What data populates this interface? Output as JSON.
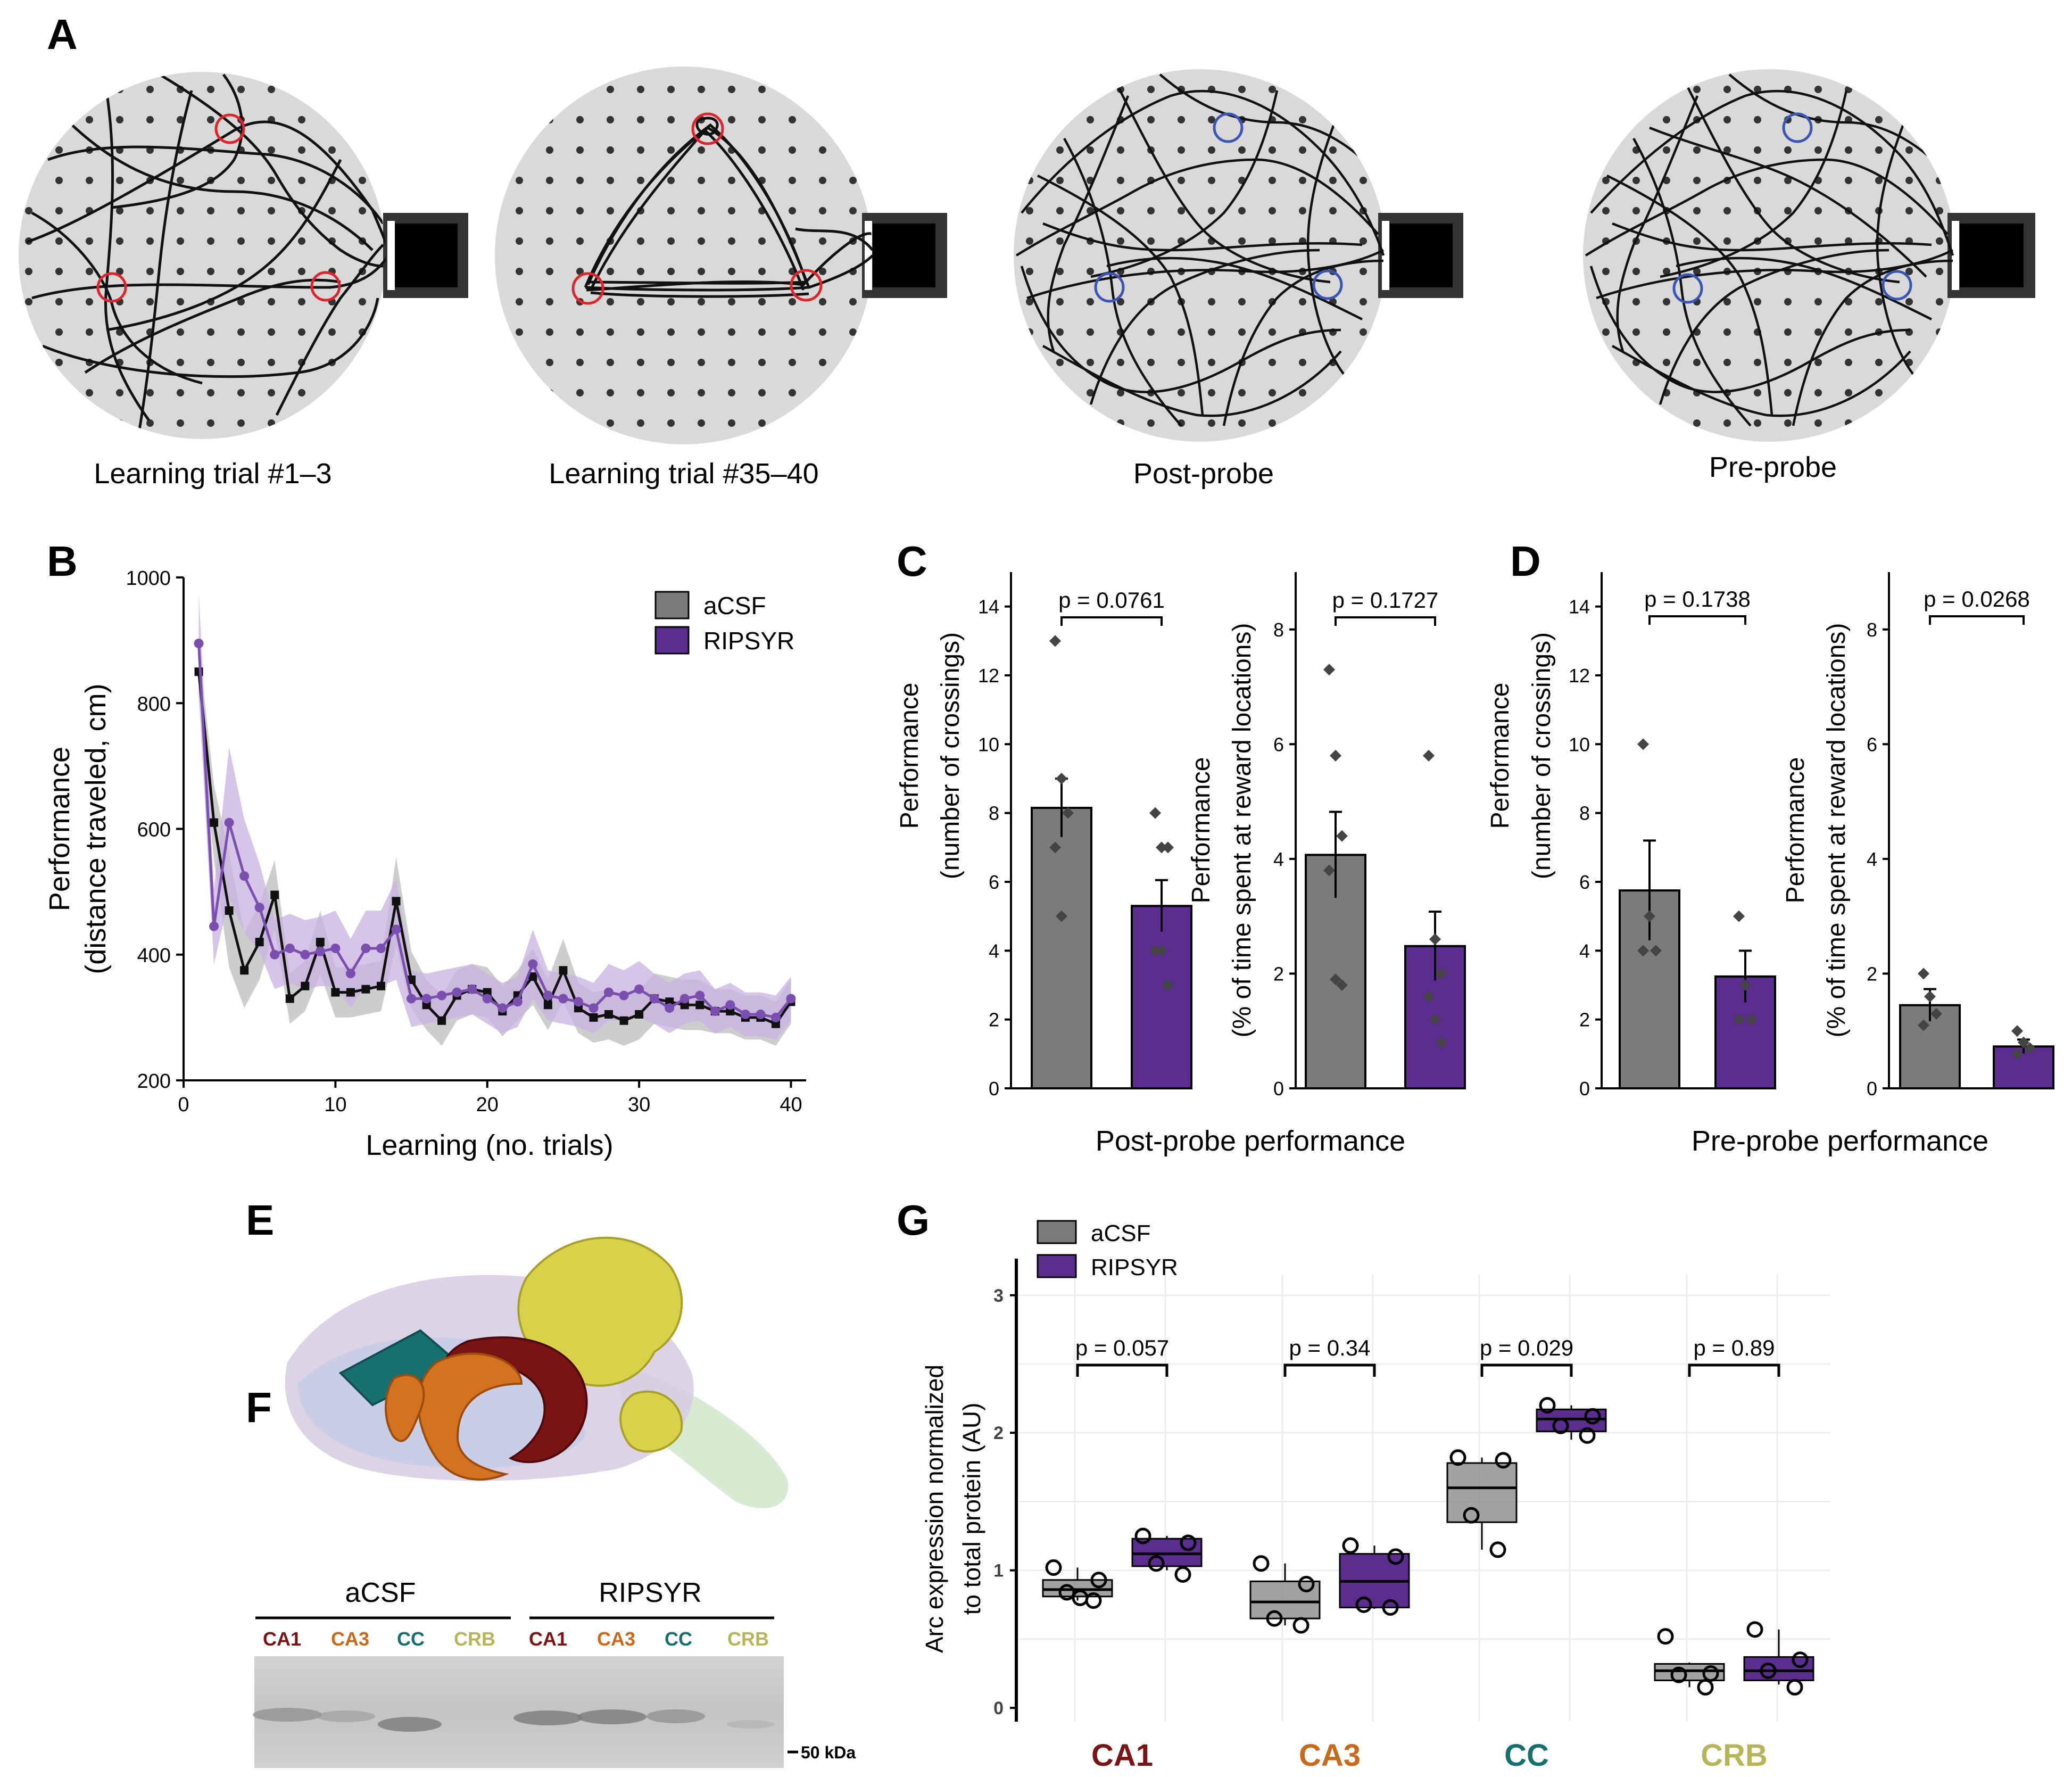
{
  "colors": {
    "aCSF": "#7b7b7b",
    "RIPSYR": "#5b2d8e",
    "aCSF_band": "#c8c8c8",
    "RIPSYR_band": "#c8b2e0",
    "reward_red": "#e0242b",
    "reward_blue": "#3a55b4",
    "arena": "#d9d9d9",
    "CA1": "#7a1414",
    "CA3": "#c8691c",
    "CC": "#17706e",
    "CRB": "#b7b45a"
  },
  "panel_a": {
    "letter": "A",
    "arenas": [
      {
        "label": "Learning trial #1–3",
        "marker": "red"
      },
      {
        "label": "Learning trial #35–40",
        "marker": "red"
      },
      {
        "label": "Post-probe",
        "marker": "blue"
      },
      {
        "label": "Pre-probe",
        "marker": "blue"
      }
    ]
  },
  "panel_b": {
    "letter": "B",
    "legend": [
      "aCSF",
      "RIPSYR"
    ]
  },
  "panel_c": {
    "letter": "C",
    "title": "Post-probe performance"
  },
  "panel_d": {
    "letter": "D",
    "title": "Pre-probe performance"
  },
  "panel_e": {
    "letter": "E"
  },
  "panel_f": {
    "letter": "F",
    "groups": [
      "aCSF",
      "RIPSYR"
    ],
    "lanes": [
      "CA1",
      "CA3",
      "CC",
      "CRB",
      "CA1",
      "CA3",
      "CC",
      "CRB"
    ],
    "marker": "50 kDa"
  },
  "panel_g": {
    "letter": "G",
    "legend": [
      "aCSF",
      "RIPSYR"
    ]
  },
  "chart_data": [
    {
      "id": "B",
      "type": "line",
      "xlabel": "Learning (no. trials)",
      "ylabel": [
        "Performance",
        "(distance traveled, cm)"
      ],
      "xlim": [
        0,
        41
      ],
      "ylim": [
        200,
        1000
      ],
      "xticks": [
        0,
        10,
        20,
        30,
        40
      ],
      "yticks": [
        200,
        400,
        600,
        800,
        1000
      ],
      "x": [
        1,
        2,
        3,
        4,
        5,
        6,
        7,
        8,
        9,
        10,
        11,
        12,
        13,
        14,
        15,
        16,
        17,
        18,
        19,
        20,
        21,
        22,
        23,
        24,
        25,
        26,
        27,
        28,
        29,
        30,
        31,
        32,
        33,
        34,
        35,
        36,
        37,
        38,
        39,
        40
      ],
      "series": [
        {
          "name": "aCSF",
          "values": [
            850,
            610,
            470,
            375,
            420,
            495,
            330,
            350,
            420,
            340,
            340,
            345,
            350,
            485,
            360,
            320,
            295,
            335,
            345,
            340,
            310,
            335,
            365,
            320,
            375,
            315,
            300,
            305,
            295,
            305,
            330,
            325,
            320,
            320,
            310,
            310,
            300,
            300,
            290,
            325
          ],
          "band": [
            40,
            60,
            90,
            60,
            60,
            55,
            40,
            40,
            50,
            40,
            40,
            40,
            40,
            70,
            45,
            40,
            40,
            40,
            40,
            40,
            40,
            40,
            45,
            40,
            50,
            40,
            40,
            40,
            40,
            40,
            40,
            40,
            40,
            40,
            35,
            35,
            35,
            35,
            35,
            35
          ]
        },
        {
          "name": "RIPSYR",
          "values": [
            895,
            445,
            610,
            525,
            475,
            400,
            410,
            400,
            405,
            410,
            370,
            410,
            410,
            440,
            330,
            330,
            335,
            340,
            345,
            330,
            315,
            325,
            385,
            335,
            330,
            325,
            315,
            340,
            335,
            345,
            330,
            315,
            330,
            335,
            310,
            320,
            305,
            305,
            300,
            330
          ],
          "band": [
            80,
            60,
            120,
            90,
            70,
            55,
            55,
            55,
            55,
            60,
            55,
            60,
            60,
            80,
            45,
            40,
            40,
            40,
            40,
            40,
            40,
            40,
            55,
            40,
            40,
            40,
            40,
            45,
            40,
            45,
            40,
            40,
            40,
            40,
            35,
            35,
            35,
            35,
            35,
            35
          ]
        }
      ]
    },
    {
      "id": "C1",
      "type": "bar",
      "ylabel": [
        "Performance",
        "(number of crossings)"
      ],
      "ylim": [
        0,
        15
      ],
      "yticks": [
        0,
        2,
        4,
        6,
        8,
        10,
        12,
        14
      ],
      "categories": [
        "aCSF",
        "RIPSYR"
      ],
      "values": [
        8.15,
        5.3
      ],
      "sem": [
        0.85,
        0.75
      ],
      "points": [
        [
          13,
          9,
          8,
          7,
          5
        ],
        [
          8,
          7,
          7,
          4,
          4,
          3
        ]
      ],
      "pvalue": "p = 0.0761"
    },
    {
      "id": "C2",
      "type": "bar",
      "ylabel": [
        "Performance",
        "(% of time spent at reward locations)"
      ],
      "ylim": [
        0,
        9
      ],
      "yticks": [
        0,
        2,
        4,
        6,
        8
      ],
      "categories": [
        "aCSF",
        "RIPSYR"
      ],
      "values": [
        4.07,
        2.48
      ],
      "sem": [
        0.75,
        0.6
      ],
      "points": [
        [
          7.3,
          5.8,
          4.4,
          3.8,
          1.9,
          1.8
        ],
        [
          5.8,
          2.6,
          2.0,
          1.6,
          1.2,
          0.8
        ]
      ],
      "pvalue": "p = 0.1727"
    },
    {
      "id": "D1",
      "type": "bar",
      "ylabel": [
        "Performance",
        "(number of crossings)"
      ],
      "ylim": [
        0,
        15
      ],
      "yticks": [
        0,
        2,
        4,
        6,
        8,
        10,
        12,
        14
      ],
      "categories": [
        "aCSF",
        "RIPSYR"
      ],
      "values": [
        5.75,
        3.25
      ],
      "sem": [
        1.45,
        0.75
      ],
      "points": [
        [
          10,
          5,
          4,
          4
        ],
        [
          5,
          3,
          2,
          2
        ]
      ],
      "pvalue": "p = 0.1738"
    },
    {
      "id": "D2",
      "type": "bar",
      "ylabel": [
        "Performance",
        "(% of time spent at reward locations)"
      ],
      "ylim": [
        0,
        9
      ],
      "yticks": [
        0,
        2,
        4,
        6,
        8
      ],
      "categories": [
        "aCSF",
        "RIPSYR"
      ],
      "values": [
        1.45,
        0.73
      ],
      "sem": [
        0.28,
        0.12
      ],
      "points": [
        [
          2.0,
          1.6,
          1.3,
          1.1
        ],
        [
          1.0,
          0.8,
          0.7,
          0.6
        ]
      ],
      "pvalue": "p = 0.0268"
    },
    {
      "id": "G",
      "type": "box",
      "ylabel": [
        "Arc expression normalized",
        "to total protein (AU)"
      ],
      "ylim": [
        -0.1,
        3.15
      ],
      "yticks": [
        0,
        1,
        2,
        3
      ],
      "categories": [
        "CA1",
        "CA3",
        "CC",
        "CRB"
      ],
      "series": [
        {
          "name": "aCSF",
          "boxes": [
            {
              "q1": 0.81,
              "med": 0.86,
              "q3": 0.93,
              "lo": 0.78,
              "hi": 1.02,
              "points": [
                1.02,
                0.93,
                0.84,
                0.78,
                0.8
              ]
            },
            {
              "q1": 0.65,
              "med": 0.77,
              "q3": 0.92,
              "lo": 0.6,
              "hi": 1.05,
              "points": [
                1.05,
                0.9,
                0.65,
                0.6
              ]
            },
            {
              "q1": 1.35,
              "med": 1.6,
              "q3": 1.78,
              "lo": 1.15,
              "hi": 1.82,
              "points": [
                1.82,
                1.8,
                1.4,
                1.15
              ]
            },
            {
              "q1": 0.2,
              "med": 0.27,
              "q3": 0.32,
              "lo": 0.15,
              "hi": 0.33,
              "points": [
                0.52,
                0.25,
                0.24,
                0.15
              ]
            }
          ]
        },
        {
          "name": "RIPSYR",
          "boxes": [
            {
              "q1": 1.03,
              "med": 1.12,
              "q3": 1.23,
              "lo": 1.0,
              "hi": 1.25,
              "points": [
                1.25,
                1.2,
                1.05,
                0.97
              ]
            },
            {
              "q1": 0.73,
              "med": 0.92,
              "q3": 1.12,
              "lo": 0.72,
              "hi": 1.18,
              "points": [
                1.18,
                1.1,
                0.75,
                0.73
              ]
            },
            {
              "q1": 2.01,
              "med": 2.1,
              "q3": 2.17,
              "lo": 1.95,
              "hi": 2.2,
              "points": [
                2.2,
                2.12,
                2.05,
                1.98
              ]
            },
            {
              "q1": 0.2,
              "med": 0.27,
              "q3": 0.37,
              "lo": 0.17,
              "hi": 0.57,
              "points": [
                0.57,
                0.35,
                0.27,
                0.15
              ]
            }
          ]
        }
      ],
      "pvalues": [
        "p = 0.057",
        "p = 0.34",
        "p = 0.029",
        "p = 0.89"
      ]
    }
  ]
}
